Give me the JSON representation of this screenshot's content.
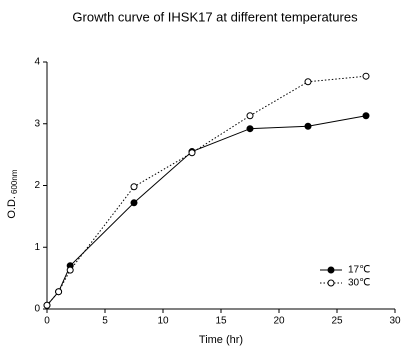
{
  "chart_data": {
    "type": "line",
    "title": "Growth curve of IHSK17 at different temperatures",
    "xlabel": "Time (hr)",
    "ylabel": "O.D.",
    "ylabel_sub": "600nm",
    "xlim": [
      0,
      30
    ],
    "xticks": [
      0,
      5,
      10,
      15,
      20,
      25,
      30
    ],
    "ylim": [
      0,
      4
    ],
    "yticks": [
      0,
      1,
      2,
      3,
      4
    ],
    "legend": "lower right",
    "series": [
      {
        "name": "17℃",
        "color": "#000000",
        "marker": "filled",
        "dash": "solid",
        "x": [
          0,
          1,
          2,
          7.5,
          12.5,
          17.5,
          22.5,
          27.5
        ],
        "values": [
          0.06,
          0.28,
          0.7,
          1.72,
          2.55,
          2.92,
          2.96,
          3.13
        ]
      },
      {
        "name": "30℃",
        "color": "#000000",
        "marker": "open",
        "dash": "dotted",
        "x": [
          0,
          1,
          2,
          7.5,
          12.5,
          17.5,
          22.5,
          27.5
        ],
        "values": [
          0.06,
          0.28,
          0.63,
          1.98,
          2.53,
          3.13,
          3.68,
          3.77
        ]
      }
    ]
  }
}
